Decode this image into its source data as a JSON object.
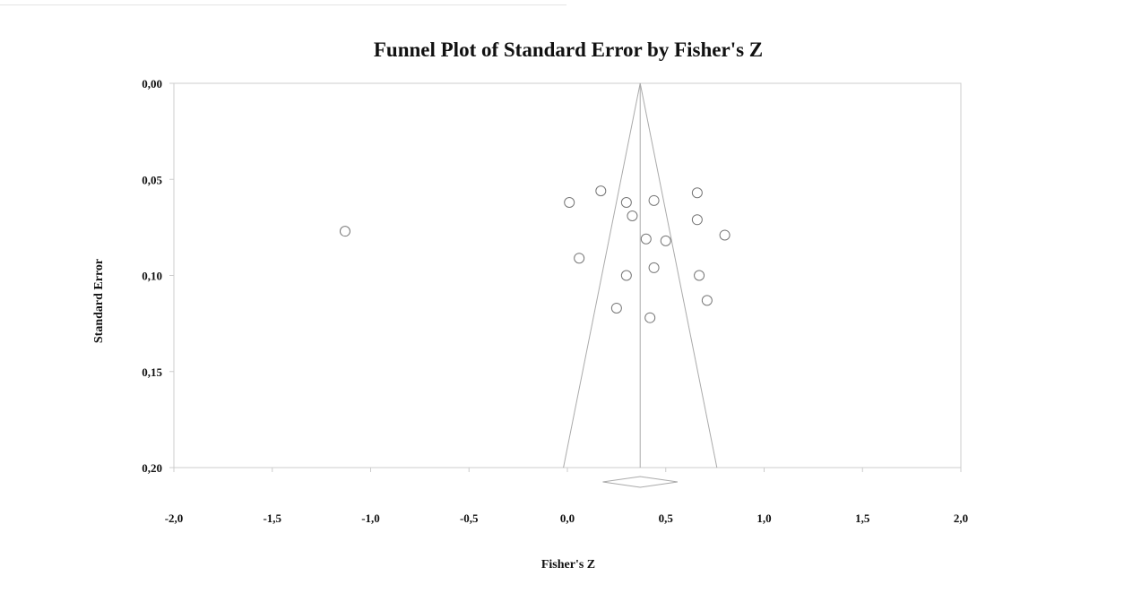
{
  "chart_data": {
    "type": "scatter",
    "title": "Funnel Plot of Standard Error by Fisher's Z",
    "xlabel": "Fisher's Z",
    "ylabel": "Standard Error",
    "xlim": [
      -2.0,
      2.0
    ],
    "ylim": [
      0.0,
      0.2
    ],
    "y_inverted": true,
    "x_ticks": [
      "-2,0",
      "-1,5",
      "-1,0",
      "-0,5",
      "0,0",
      "0,5",
      "1,0",
      "1,5",
      "2,0"
    ],
    "y_ticks": [
      "0,00",
      "0,05",
      "0,10",
      "0,15",
      "0,20"
    ],
    "x_tick_values": [
      -2.0,
      -1.5,
      -1.0,
      -0.5,
      0.0,
      0.5,
      1.0,
      1.5,
      2.0
    ],
    "y_tick_values": [
      0.0,
      0.05,
      0.1,
      0.15,
      0.2
    ],
    "combined_effect": 0.37,
    "combined_effect_ci": [
      0.18,
      0.56
    ],
    "funnel": {
      "apex": [
        0.37,
        0.0
      ],
      "base_left": [
        -0.02,
        0.2
      ],
      "base_right": [
        0.76,
        0.2
      ]
    },
    "points": [
      {
        "x": -1.13,
        "y": 0.077
      },
      {
        "x": 0.01,
        "y": 0.062
      },
      {
        "x": 0.17,
        "y": 0.056
      },
      {
        "x": 0.3,
        "y": 0.062
      },
      {
        "x": 0.33,
        "y": 0.069
      },
      {
        "x": 0.44,
        "y": 0.061
      },
      {
        "x": 0.66,
        "y": 0.057
      },
      {
        "x": 0.66,
        "y": 0.071
      },
      {
        "x": 0.4,
        "y": 0.081
      },
      {
        "x": 0.5,
        "y": 0.082
      },
      {
        "x": 0.8,
        "y": 0.079
      },
      {
        "x": 0.06,
        "y": 0.091
      },
      {
        "x": 0.3,
        "y": 0.1
      },
      {
        "x": 0.44,
        "y": 0.096
      },
      {
        "x": 0.67,
        "y": 0.1
      },
      {
        "x": 0.25,
        "y": 0.117
      },
      {
        "x": 0.42,
        "y": 0.122
      },
      {
        "x": 0.71,
        "y": 0.113
      }
    ],
    "grid": false,
    "colors": {
      "funnel": "#aaaaaa",
      "frame": "#cccccc",
      "points": "#777777",
      "text": "#111111"
    }
  }
}
